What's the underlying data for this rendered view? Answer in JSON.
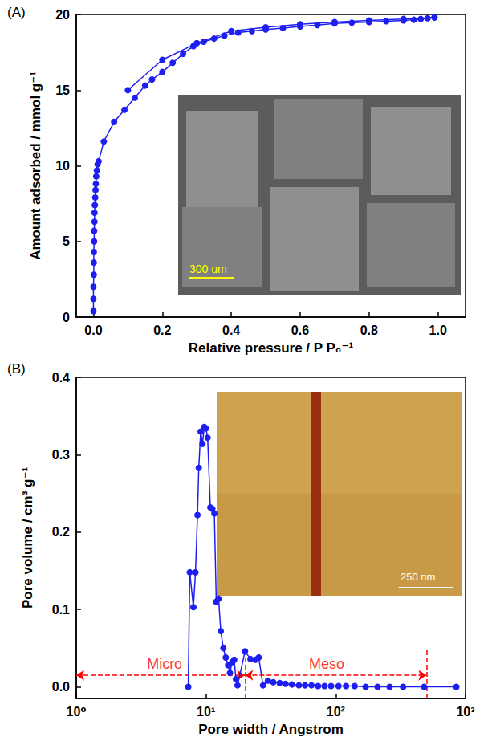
{
  "chart_data": [
    {
      "type": "line",
      "title": "(A)",
      "x_label": "Relative pressure / P P₀⁻¹",
      "y_label": "Amount adsorbed / mmol g⁻¹",
      "marker": "circle",
      "grid": false,
      "xlim": [
        -0.05,
        1.08
      ],
      "xticks": [
        {
          "value": 0,
          "label": "0.0"
        },
        {
          "value": 0.2,
          "label": "0.2"
        },
        {
          "value": 0.4,
          "label": "0.4"
        },
        {
          "value": 0.6,
          "label": "0.6"
        },
        {
          "value": 0.8,
          "label": "0.8"
        },
        {
          "value": 1.0,
          "label": "1.0"
        }
      ],
      "ylim": [
        0,
        20
      ],
      "yticks": [
        0,
        5,
        10,
        15,
        20
      ],
      "series": [
        {
          "color": "#1e1ef0",
          "x": [
            0.0,
            0.0,
            0.0,
            0.001,
            0.001,
            0.001,
            0.002,
            0.002,
            0.003,
            0.003,
            0.004,
            0.005,
            0.006,
            0.007,
            0.008,
            0.01,
            0.012,
            0.015,
            0.03,
            0.06,
            0.09,
            0.12,
            0.15,
            0.17,
            0.2,
            0.23,
            0.26,
            0.29,
            0.32,
            0.35,
            0.38,
            0.42,
            0.46,
            0.5,
            0.55,
            0.6,
            0.65,
            0.7,
            0.75,
            0.8,
            0.85,
            0.9,
            0.93,
            0.95,
            0.97,
            0.99
          ],
          "values": [
            0.4,
            1.2,
            2.0,
            2.8,
            3.6,
            4.3,
            5.0,
            5.7,
            6.3,
            6.9,
            7.4,
            7.9,
            8.4,
            8.8,
            9.3,
            9.7,
            10.1,
            10.3,
            11.6,
            12.9,
            13.7,
            14.5,
            15.3,
            15.7,
            16.2,
            16.8,
            17.4,
            17.9,
            18.2,
            18.4,
            18.6,
            18.8,
            18.9,
            19.0,
            19.1,
            19.2,
            19.3,
            19.4,
            19.45,
            19.5,
            19.55,
            19.6,
            19.65,
            19.7,
            19.75,
            19.8
          ]
        },
        {
          "color": "#1e1ef0",
          "x": [
            0.99,
            0.9,
            0.8,
            0.7,
            0.6,
            0.5,
            0.4,
            0.3,
            0.2,
            0.1
          ],
          "values": [
            19.8,
            19.7,
            19.6,
            19.5,
            19.35,
            19.15,
            18.9,
            18.1,
            17.0,
            15.0
          ]
        }
      ],
      "inset": {
        "scale_bar": "300 um"
      }
    },
    {
      "type": "line",
      "title": "(B)",
      "x_label": "Pore width / Angstrom",
      "y_label": "Pore volume / cm³ g⁻¹",
      "marker": "circle",
      "grid": false,
      "log": "x",
      "xlim": [
        1,
        1000
      ],
      "xticks": [
        {
          "value": 1,
          "label": "10⁰"
        },
        {
          "value": 10,
          "label": "10¹"
        },
        {
          "value": 100,
          "label": "10²"
        },
        {
          "value": 1000,
          "label": "10³"
        }
      ],
      "ylim": [
        -0.015,
        0.4
      ],
      "yticks": [
        {
          "value": 0,
          "label": "0.0"
        },
        {
          "value": 0.1,
          "label": "0.1"
        },
        {
          "value": 0.2,
          "label": "0.2"
        },
        {
          "value": 0.3,
          "label": "0.3"
        },
        {
          "value": 0.4,
          "label": "0.4"
        }
      ],
      "series": [
        {
          "color": "#1e1ef0",
          "x": [
            7.3,
            7.5,
            8.0,
            8.3,
            8.6,
            8.8,
            9.1,
            9.4,
            9.7,
            10.0,
            10.3,
            10.8,
            11.2,
            11.6,
            12.0,
            12.5,
            13.0,
            13.6,
            14.2,
            14.8,
            15.3,
            15.9,
            16.5,
            17.0,
            17.5,
            20.0,
            22.0,
            24.0,
            25.5,
            27.5,
            30,
            33,
            37,
            41,
            46,
            52,
            58,
            65,
            73,
            82,
            92,
            105,
            120,
            140,
            170,
            210,
            260,
            330,
            480,
            850
          ],
          "values": [
            0.0,
            0.148,
            0.103,
            0.148,
            0.222,
            0.283,
            0.33,
            0.314,
            0.336,
            0.334,
            0.322,
            0.232,
            0.23,
            0.224,
            0.11,
            0.114,
            0.072,
            0.05,
            0.038,
            0.028,
            0.018,
            0.032,
            0.035,
            0.01,
            0.002,
            0.046,
            0.036,
            0.035,
            0.038,
            0.002,
            0.008,
            0.006,
            0.005,
            0.004,
            0.003,
            0.002,
            0.002,
            0.002,
            0.001,
            0.001,
            0.001,
            0.001,
            0.001,
            0.001,
            0.0,
            0.0,
            0.0,
            0.0,
            0.0,
            0.0
          ]
        }
      ],
      "annotations": {
        "color": "#ff0000",
        "ranges": [
          {
            "label": "Micro",
            "x": [
              1,
              20
            ],
            "y": 0.015,
            "label_at": [
              4.8,
              0.03
            ]
          },
          {
            "label": "Meso",
            "x": [
              20,
              500
            ],
            "y": 0.015,
            "label_at": [
              85,
              0.03
            ]
          }
        ],
        "boundaries": [
          {
            "x": 20,
            "y": [
              -0.015,
              0.05
            ]
          },
          {
            "x": 500,
            "y": [
              -0.015,
              0.05
            ]
          }
        ]
      },
      "inset": {
        "scale_bar": "250 nm"
      }
    }
  ]
}
